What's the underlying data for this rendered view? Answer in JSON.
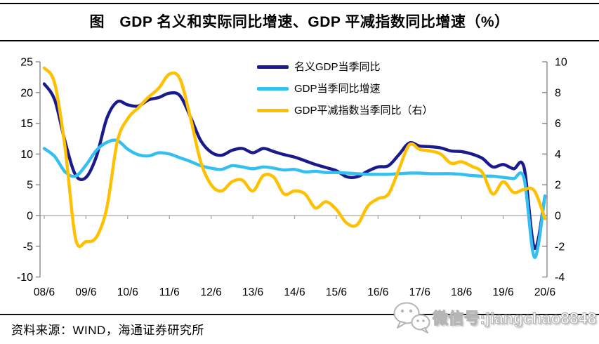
{
  "figure": {
    "title": "图　GDP 名义和实际同比增速、GDP 平减指数同比增速（%）",
    "source_note": "资料来源：WIND，海通证券研究所",
    "watermark": {
      "icon": "wechat-icon",
      "text": "微信号:jiangchao8848"
    }
  },
  "chart_data": {
    "type": "line",
    "title": "GDP 名义和实际同比增速、GDP 平减指数同比增速（%）",
    "x_tick_labels": [
      "08/6",
      "09/6",
      "10/6",
      "11/6",
      "12/6",
      "13/6",
      "14/6",
      "15/6",
      "16/6",
      "17/6",
      "18/6",
      "19/6",
      "20/6"
    ],
    "x_start": "08/6",
    "x_step_months": 3,
    "points_per_year": 4,
    "left_axis": {
      "min": -10,
      "max": 25,
      "ticks": [
        25,
        20,
        15,
        10,
        5,
        0,
        -5,
        -10
      ]
    },
    "right_axis": {
      "min": -4,
      "max": 10,
      "ticks": [
        10,
        8,
        6,
        4,
        2,
        0,
        -2,
        -4
      ]
    },
    "grid": "zero-line-only",
    "legend_position": "top-center-inside",
    "axis_color": "#7f7f7f",
    "zero_line_color": "#a6a6a6",
    "series": [
      {
        "name": "名义GDP当季同比",
        "axis": "left",
        "color": "#1a1a8c",
        "values": [
          21.4,
          18.8,
          12.0,
          6.6,
          6.2,
          9.6,
          15.8,
          18.5,
          18.0,
          17.8,
          18.8,
          19.2,
          19.9,
          19.5,
          16.1,
          12.2,
          10.3,
          9.8,
          10.6,
          10.9,
          10.2,
          10.9,
          10.4,
          9.9,
          9.5,
          8.9,
          8.3,
          7.8,
          7.3,
          6.3,
          6.3,
          7.2,
          7.9,
          8.1,
          9.9,
          11.8,
          11.3,
          11.2,
          11.0,
          10.5,
          10.4,
          10.0,
          9.3,
          7.9,
          8.3,
          7.6,
          7.8,
          -5.3,
          3.1
        ]
      },
      {
        "name": "GDP当季同比增速",
        "axis": "left",
        "color": "#33bfef",
        "values": [
          10.9,
          9.6,
          7.1,
          6.4,
          8.2,
          10.6,
          11.9,
          12.2,
          10.8,
          9.9,
          9.7,
          10.2,
          10.0,
          9.4,
          8.8,
          8.1,
          7.7,
          7.5,
          8.1,
          7.9,
          7.6,
          7.9,
          7.7,
          7.4,
          7.5,
          7.1,
          7.2,
          7.0,
          7.0,
          6.9,
          6.8,
          6.7,
          6.7,
          6.7,
          6.8,
          6.9,
          6.9,
          6.8,
          6.8,
          6.8,
          6.7,
          6.5,
          6.4,
          6.4,
          6.2,
          6.0,
          6.0,
          -6.8,
          3.2
        ]
      },
      {
        "name": "GDP平减指数当季同比（右）",
        "axis": "right",
        "color": "#ffc000",
        "values": [
          9.6,
          8.6,
          4.4,
          -1.5,
          -1.7,
          -1.4,
          0.5,
          4.8,
          6.3,
          7.0,
          7.7,
          8.3,
          9.2,
          8.9,
          6.4,
          3.5,
          2.0,
          1.6,
          2.2,
          2.3,
          1.6,
          2.6,
          2.5,
          1.4,
          1.6,
          1.4,
          0.5,
          0.9,
          0.4,
          -0.5,
          -0.6,
          0.6,
          1.1,
          1.4,
          3.0,
          4.6,
          4.3,
          4.2,
          4.0,
          3.4,
          3.5,
          3.2,
          2.8,
          1.4,
          2.2,
          1.5,
          1.7,
          1.6,
          -0.2
        ]
      }
    ]
  }
}
